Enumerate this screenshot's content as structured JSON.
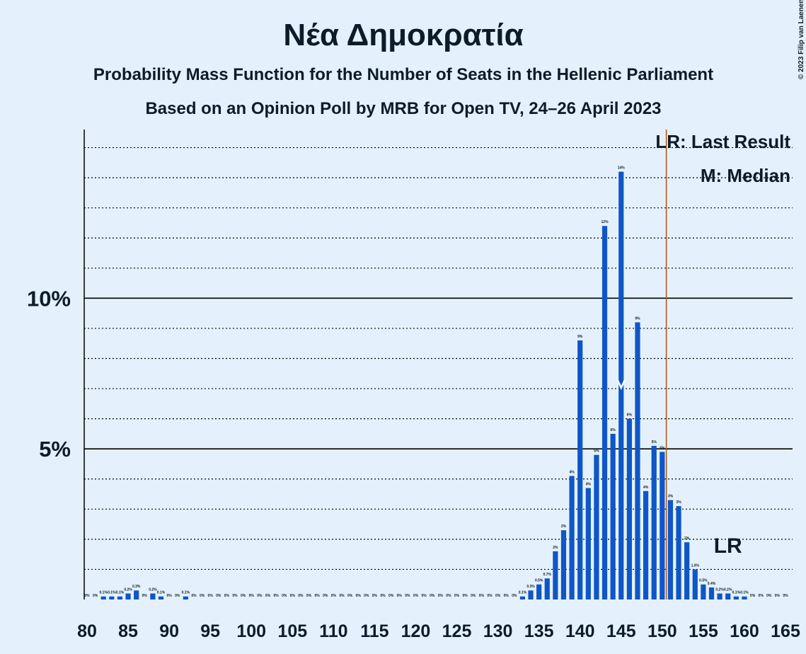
{
  "chart_data": {
    "type": "bar",
    "title": "Νέα Δημοκρατία",
    "subtitle": "Probability Mass Function for the Number of Seats in the Hellenic Parliament",
    "subtitle2": "Based on an Opinion Poll by MRB for Open TV, 24–26 April 2023",
    "copyright": "© 2023 Filip van Laenen",
    "legend": [
      "LR: Last Result",
      "M: Median"
    ],
    "last_result_label": "LR",
    "x": [
      80,
      81,
      82,
      83,
      84,
      85,
      86,
      87,
      88,
      89,
      90,
      91,
      92,
      93,
      94,
      95,
      96,
      97,
      98,
      99,
      100,
      101,
      102,
      103,
      104,
      105,
      106,
      107,
      108,
      109,
      110,
      111,
      112,
      113,
      114,
      115,
      116,
      117,
      118,
      119,
      120,
      121,
      122,
      123,
      124,
      125,
      126,
      127,
      128,
      129,
      130,
      131,
      132,
      133,
      134,
      135,
      136,
      137,
      138,
      139,
      140,
      141,
      142,
      143,
      144,
      145,
      146,
      147,
      148,
      149,
      150,
      151,
      152,
      153,
      154,
      155,
      156,
      157,
      158,
      159,
      160,
      161,
      162,
      163,
      164,
      165
    ],
    "values": [
      0,
      0,
      0.1,
      0.1,
      0.1,
      0.2,
      0.3,
      0,
      0.2,
      0.1,
      0,
      0,
      0.1,
      0,
      0,
      0,
      0,
      0,
      0,
      0,
      0,
      0,
      0,
      0,
      0,
      0,
      0,
      0,
      0,
      0,
      0,
      0,
      0,
      0,
      0,
      0,
      0,
      0,
      0,
      0,
      0,
      0,
      0,
      0,
      0,
      0,
      0,
      0,
      0,
      0,
      0,
      0,
      0,
      0.1,
      0.3,
      0.5,
      0.7,
      1.6,
      2.3,
      4.1,
      8.6,
      3.7,
      4.8,
      12.4,
      5.5,
      14.2,
      6.0,
      9.2,
      3.6,
      5.1,
      4.9,
      3.3,
      3.1,
      1.9,
      1.0,
      0.5,
      0.4,
      0.2,
      0.2,
      0.1,
      0.1,
      0,
      0,
      0,
      0,
      0
    ],
    "value_labels": [
      "0%",
      "0%",
      "0.1%",
      "0.1%",
      "0.1%",
      "0.2%",
      "0.3%",
      "0%",
      "0.2%",
      "0.1%",
      "0%",
      "0%",
      "0.1%",
      "0%",
      "0%",
      "0%",
      "0%",
      "0%",
      "0%",
      "0%",
      "0%",
      "0%",
      "0%",
      "0%",
      "0%",
      "0%",
      "0%",
      "0%",
      "0%",
      "0%",
      "0%",
      "0%",
      "0%",
      "0%",
      "0%",
      "0%",
      "0%",
      "0%",
      "0%",
      "0%",
      "0%",
      "0%",
      "0%",
      "0%",
      "0%",
      "0%",
      "0%",
      "0%",
      "0%",
      "0%",
      "0%",
      "0%",
      "0%",
      "0.1%",
      "0.3%",
      "0.5%",
      "0.7%",
      "2%",
      "2%",
      "4%",
      "9%",
      "4%",
      "5%",
      "12%",
      "6%",
      "14%",
      "6%",
      "9%",
      "4%",
      "5%",
      "5%",
      "3%",
      "3%",
      "2%",
      "1.0%",
      "0.5%",
      "0.4%",
      "0.2%",
      "0.2%",
      "0.1%",
      "0.1%",
      "0%",
      "0%",
      "0%",
      "0%",
      "0%"
    ],
    "color": "#0f56c6",
    "xlim": [
      80,
      165
    ],
    "xticks": [
      80,
      85,
      90,
      95,
      100,
      105,
      110,
      115,
      120,
      125,
      130,
      135,
      140,
      145,
      150,
      155,
      160,
      165
    ],
    "ylim": [
      0,
      15.6
    ],
    "yticks": [
      {
        "value": 5,
        "label": "5%"
      },
      {
        "value": 10,
        "label": "10%"
      }
    ],
    "grid_yticks": [
      1,
      2,
      3,
      4,
      5,
      6,
      7,
      8,
      9,
      10,
      11,
      12,
      13,
      14,
      15
    ],
    "grid": true,
    "median": 145,
    "last_result": 158,
    "majority": 151,
    "majority_color": "#b5520e"
  }
}
